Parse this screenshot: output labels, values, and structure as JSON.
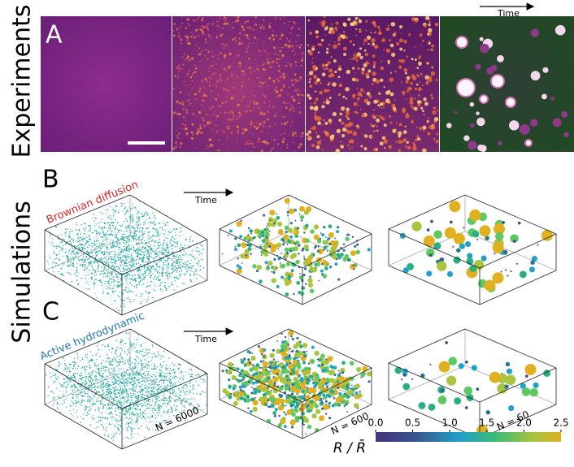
{
  "rows": {
    "experiments": "Experiments",
    "simulations": "Simulations"
  },
  "panels": {
    "a": "A",
    "b": "B",
    "c": "C"
  },
  "time_labels": {
    "a": "Time",
    "b": "Time",
    "c": "Time"
  },
  "conditions": {
    "b": "Brownian diffusion",
    "c": "Active hydrodynamic"
  },
  "particle_counts": [
    "N = 6000",
    "N = 600",
    "N = 60"
  ],
  "colorbar": {
    "label": "R / R̄",
    "lim": [
      0,
      2.5
    ],
    "ticks": [
      {
        "value": 0,
        "label": "0.0"
      },
      {
        "value": 0.5,
        "label": "0.5"
      },
      {
        "value": 1,
        "label": "1.0"
      },
      {
        "value": 1.5,
        "label": "1.5"
      },
      {
        "value": 2,
        "label": "2.0"
      },
      {
        "value": 2.5,
        "label": "2.5"
      }
    ]
  }
}
